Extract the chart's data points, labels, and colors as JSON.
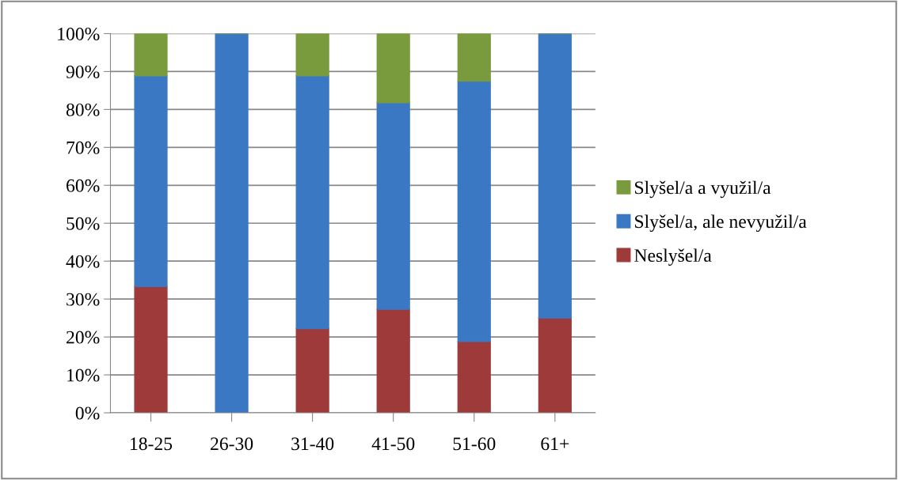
{
  "chart_data": {
    "type": "bar",
    "stacked": true,
    "categories": [
      "18-25",
      "26-30",
      "31-40",
      "41-50",
      "51-60",
      "61+"
    ],
    "series": [
      {
        "name": "Neslyšel/a",
        "color": "#9e3b3a",
        "values": [
          33.3,
          0,
          22.2,
          27.3,
          18.8,
          25
        ]
      },
      {
        "name": "Slyšel/a, ale nevyužil/a",
        "color": "#3b78c4",
        "values": [
          55.6,
          100,
          66.7,
          54.5,
          68.7,
          75
        ]
      },
      {
        "name": "Slyšel/a a využil/a",
        "color": "#7a9a3e",
        "values": [
          11.1,
          0,
          11.1,
          18.2,
          12.5,
          0
        ]
      }
    ],
    "ylim": [
      0,
      100
    ],
    "yticks": [
      {
        "value": 0,
        "label": "0%"
      },
      {
        "value": 10,
        "label": "10%"
      },
      {
        "value": 20,
        "label": "20%"
      },
      {
        "value": 30,
        "label": "30%"
      },
      {
        "value": 40,
        "label": "40%"
      },
      {
        "value": 50,
        "label": "50%"
      },
      {
        "value": 60,
        "label": "60%"
      },
      {
        "value": 70,
        "label": "70%"
      },
      {
        "value": 80,
        "label": "80%"
      },
      {
        "value": 90,
        "label": "90%"
      },
      {
        "value": 100,
        "label": "100%"
      }
    ],
    "grid": "y",
    "legend": "right"
  }
}
